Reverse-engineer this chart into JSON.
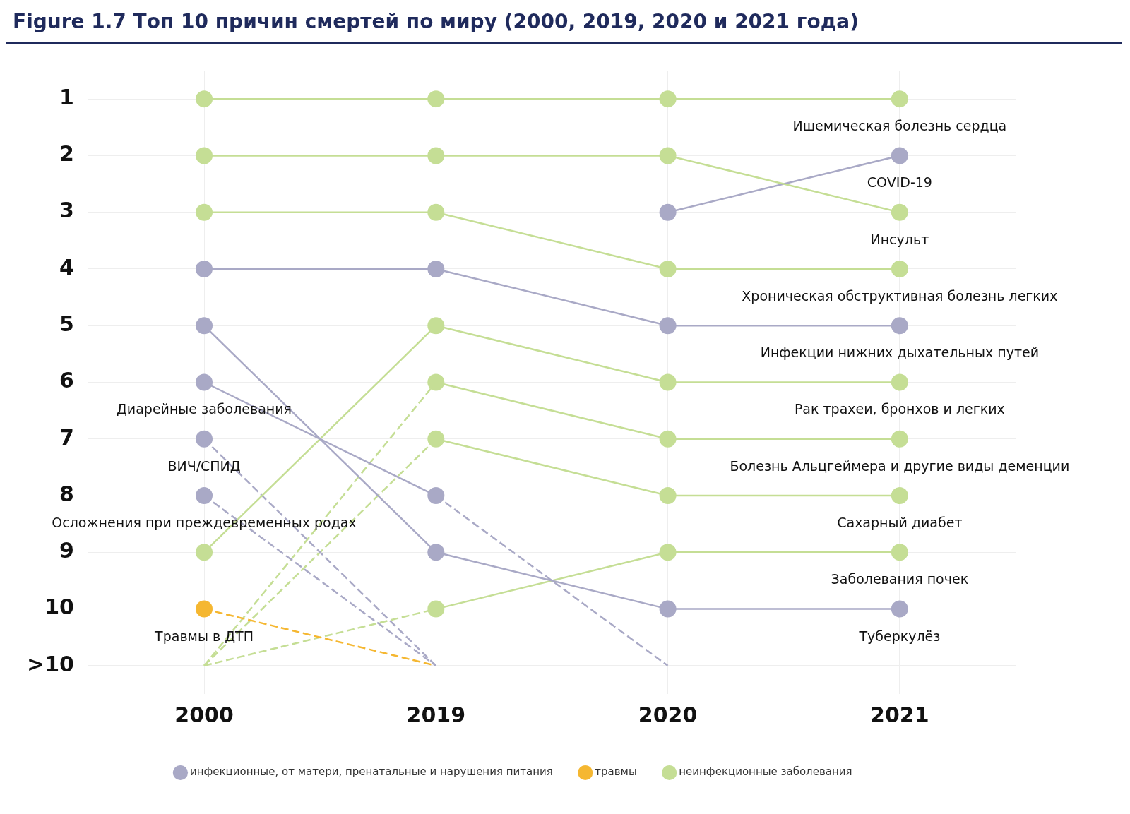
{
  "chart_data": {
    "type": "line",
    "title": "Figure 1.7 Топ 10 причин смертей по миру (2000, 2019, 2020 и 2021 года)",
    "categories": [
      "2000",
      "2019",
      "2020",
      "2021"
    ],
    "ylim": [
      11.5,
      0.5
    ],
    "yticks": [
      1,
      2,
      3,
      4,
      5,
      6,
      7,
      8,
      9,
      10,
      {
        "value": 11,
        "label": ">10"
      }
    ],
    "grid": true,
    "legend": "bottom",
    "marker": "circle",
    "line_style": "solid",
    "series": [
      {
        "color": "#c5de95",
        "values": [
          1,
          1,
          1,
          1
        ]
      },
      {
        "color": "#c5de95",
        "values": [
          2,
          2,
          2,
          3
        ]
      },
      {
        "color": "#c5de95",
        "values": [
          3,
          3,
          4,
          4
        ]
      },
      {
        "color": "#a9a9c6",
        "values": [
          4,
          4,
          5,
          5
        ]
      },
      {
        "color": "#a9a9c6",
        "values": [
          null,
          null,
          3,
          2
        ]
      },
      {
        "color": "#a9a9c6",
        "values": [
          5,
          9,
          10,
          10
        ]
      },
      {
        "color": "#a9a9c6",
        "values": [
          6,
          8,
          null,
          null
        ]
      },
      {
        "color": "#a9a9c6",
        "values": [
          null,
          8,
          11,
          null
        ],
        "line_style": "dashed",
        "marker": "none"
      },
      {
        "color": "#a9a9c6",
        "values": [
          7,
          null,
          null,
          null
        ]
      },
      {
        "color": "#a9a9c6",
        "values": [
          7,
          11,
          null,
          null
        ],
        "line_style": "dashed",
        "marker": "none"
      },
      {
        "color": "#a9a9c6",
        "values": [
          8,
          null,
          null,
          null
        ]
      },
      {
        "color": "#a9a9c6",
        "values": [
          8,
          11,
          null,
          null
        ],
        "line_style": "dashed",
        "marker": "none"
      },
      {
        "color": "#f5b731",
        "values": [
          10,
          null,
          null,
          null
        ]
      },
      {
        "color": "#f5b731",
        "values": [
          10,
          11,
          null,
          null
        ],
        "line_style": "dashed",
        "marker": "none"
      },
      {
        "color": "#c5de95",
        "values": [
          9,
          5,
          6,
          6
        ]
      },
      {
        "color": "#c5de95",
        "values": [
          11,
          6,
          null,
          null
        ],
        "line_style": "dashed"
      },
      {
        "color": "#c5de95",
        "values": [
          null,
          6,
          7,
          7
        ]
      },
      {
        "color": "#c5de95",
        "values": [
          11,
          7,
          null,
          null
        ],
        "line_style": "dashed"
      },
      {
        "color": "#c5de95",
        "values": [
          null,
          7,
          8,
          8
        ]
      },
      {
        "color": "#c5de95",
        "values": [
          11,
          10,
          null,
          null
        ],
        "line_style": "dashed"
      },
      {
        "color": "#c5de95",
        "values": [
          null,
          10,
          9,
          9
        ]
      },
      {
        "name": "инфекционные, от матери, пренатальные и нарушения питания",
        "color": "#a9a9c6",
        "values": [
          null,
          null,
          null,
          null
        ]
      },
      {
        "name": "травмы",
        "color": "#f5b731",
        "values": [
          null,
          null,
          null,
          null
        ]
      },
      {
        "name": "неинфекционные заболевания",
        "color": "#c5de95",
        "values": [
          null,
          null,
          null,
          null
        ]
      }
    ],
    "annotations": [
      {
        "text": "Ишемическая болезнь сердца",
        "x": "2021",
        "y": 1
      },
      {
        "text": "COVID-19",
        "x": "2021",
        "y": 2
      },
      {
        "text": "Инсульт",
        "x": "2021",
        "y": 3
      },
      {
        "text": "Хроническая обструктивная болезнь легких",
        "x": "2021",
        "y": 4
      },
      {
        "text": "Инфекции нижних дыхательных путей",
        "x": "2021",
        "y": 5
      },
      {
        "text": "Рак трахеи, бронхов и легких",
        "x": "2021",
        "y": 6
      },
      {
        "text": "Болезнь Альцгеймера и другие виды деменции",
        "x": "2021",
        "y": 7
      },
      {
        "text": "Сахарный диабет",
        "x": "2021",
        "y": 8
      },
      {
        "text": "Заболевания почек",
        "x": "2021",
        "y": 9
      },
      {
        "text": "Туберкулёз",
        "x": "2021",
        "y": 10
      },
      {
        "text": "Диарейные заболевания",
        "x": "2000",
        "y": 6
      },
      {
        "text": "ВИЧ/СПИД",
        "x": "2000",
        "y": 7
      },
      {
        "text": "Осложнения при преждевременных родах",
        "x": "2000",
        "y": 8
      },
      {
        "text": "Травмы в ДТП",
        "x": "2000",
        "y": 10
      }
    ]
  }
}
